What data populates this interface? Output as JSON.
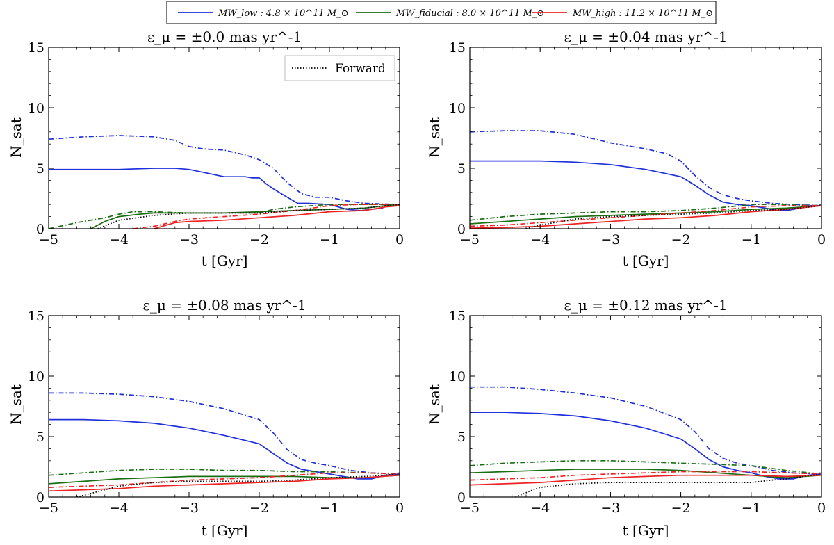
{
  "legend": {
    "entries": [
      {
        "label": "MW_low : 4.8 × 10^11 M_⊙",
        "color": "#1f2fdc"
      },
      {
        "label": "MW_fiducial : 8.0 × 10^11 M_⊙",
        "color": "#1a6e12"
      },
      {
        "label": "MW_high : 11.2 × 10^11 M_⊙",
        "color": "#ee2222"
      }
    ]
  },
  "colors": {
    "low": "#1f2fdc",
    "fiducial": "#1a6e12",
    "high": "#ee2222",
    "forward": "#000000"
  },
  "chart_data": [
    {
      "type": "line",
      "title": "ε_μ = ±0.0 mas yr^-1",
      "xlabel": "t [Gyr]",
      "ylabel": "N_sat",
      "xlim": [
        -5,
        0
      ],
      "ylim": [
        0,
        15
      ],
      "xticks": [
        "−5",
        "−4",
        "−3",
        "−2",
        "−1",
        "0"
      ],
      "yticks": [
        "0",
        "5",
        "10",
        "15"
      ],
      "legend_label": "Forward",
      "series": [
        {
          "color": "low",
          "style": "solid",
          "x": [
            -5,
            -4.5,
            -4,
            -3.5,
            -3.2,
            -3,
            -2.5,
            -2.2,
            -2.1,
            -2.0,
            -1.9,
            -1.8,
            -1.6,
            -1.45,
            -1.3,
            -1,
            -0.75,
            -0.55,
            -0.4,
            -0.25,
            -0.15,
            0
          ],
          "y": [
            4.9,
            4.9,
            4.9,
            5.0,
            5.0,
            4.9,
            4.3,
            4.3,
            4.2,
            4.2,
            3.7,
            3.3,
            2.6,
            2.1,
            2.1,
            2.0,
            1.6,
            1.5,
            1.6,
            1.7,
            2.0,
            2.0
          ]
        },
        {
          "color": "low",
          "style": "dashdot",
          "x": [
            -5,
            -4.5,
            -4,
            -3.5,
            -3.2,
            -3,
            -2.8,
            -2.5,
            -2.2,
            -2.0,
            -1.8,
            -1.6,
            -1.4,
            -1.2,
            -1,
            -0.75,
            -0.5,
            0
          ],
          "y": [
            7.4,
            7.6,
            7.7,
            7.6,
            7.3,
            6.8,
            6.6,
            6.5,
            6.1,
            5.7,
            5.0,
            3.8,
            2.9,
            2.6,
            2.6,
            2.3,
            2.1,
            2.0
          ]
        },
        {
          "color": "fiducial",
          "style": "solid",
          "x": [
            -4.4,
            -4.2,
            -4.0,
            -3.7,
            -3.5,
            -3.0,
            -2.5,
            -2.0,
            -1.5,
            -1.0,
            -0.5,
            -0.2,
            0
          ],
          "y": [
            0.0,
            0.6,
            1.0,
            1.2,
            1.3,
            1.3,
            1.3,
            1.4,
            1.5,
            1.6,
            1.7,
            1.9,
            2.0
          ]
        },
        {
          "color": "fiducial",
          "style": "dashdot",
          "x": [
            -5,
            -4.6,
            -4.2,
            -4.0,
            -3.8,
            -3.5,
            -3.0,
            -2.5,
            -2.0,
            -1.8,
            -1.5,
            -1.0,
            -0.5,
            0
          ],
          "y": [
            0.0,
            0.5,
            0.9,
            1.2,
            1.4,
            1.4,
            1.3,
            1.3,
            1.3,
            1.6,
            1.8,
            2.0,
            2.0,
            2.0
          ]
        },
        {
          "color": "high",
          "style": "solid",
          "x": [
            -3.5,
            -3.2,
            -3.0,
            -2.5,
            -2.0,
            -1.5,
            -1.0,
            -0.5,
            -0.2,
            0
          ],
          "y": [
            0.0,
            0.5,
            0.6,
            0.7,
            0.9,
            1.1,
            1.4,
            1.5,
            1.8,
            1.9
          ]
        },
        {
          "color": "high",
          "style": "dashdot",
          "x": [
            -3.8,
            -3.5,
            -3.2,
            -3.0,
            -2.5,
            -2.0,
            -1.5,
            -1.0,
            -0.6,
            -0.3,
            0
          ],
          "y": [
            0.0,
            0.2,
            0.6,
            0.8,
            1.0,
            1.2,
            1.5,
            1.9,
            2.0,
            2.0,
            2.0
          ]
        },
        {
          "color": "forward",
          "style": "dotted",
          "x": [
            -4.3,
            -4.0,
            -3.5,
            -3.0,
            -2.5,
            -2.0,
            -1.5,
            -1.0,
            -0.5,
            -0.2,
            0
          ],
          "y": [
            0.0,
            0.7,
            1.1,
            1.3,
            1.3,
            1.3,
            1.5,
            1.6,
            1.7,
            1.9,
            2.0
          ]
        }
      ]
    },
    {
      "type": "line",
      "title": "ε_μ = ±0.04 mas yr^-1",
      "xlabel": "t [Gyr]",
      "ylabel": "N_sat",
      "xlim": [
        -5,
        0
      ],
      "ylim": [
        0,
        15
      ],
      "xticks": [
        "−5",
        "−4",
        "−3",
        "−2",
        "−1",
        "0"
      ],
      "yticks": [
        "0",
        "5",
        "10",
        "15"
      ],
      "series": [
        {
          "color": "low",
          "style": "solid",
          "x": [
            -5,
            -4.5,
            -4,
            -3.5,
            -3.0,
            -2.5,
            -2.0,
            -1.8,
            -1.6,
            -1.4,
            -1.2,
            -1.0,
            -0.8,
            -0.6,
            -0.5,
            -0.3,
            -0.15,
            0
          ],
          "y": [
            5.6,
            5.6,
            5.6,
            5.5,
            5.3,
            4.9,
            4.3,
            3.6,
            2.8,
            2.2,
            2.0,
            1.9,
            1.7,
            1.5,
            1.5,
            1.7,
            1.9,
            1.9
          ]
        },
        {
          "color": "low",
          "style": "dashdot",
          "x": [
            -5,
            -4.5,
            -4,
            -3.5,
            -3.0,
            -2.5,
            -2.2,
            -2.0,
            -1.8,
            -1.6,
            -1.4,
            -1.2,
            -1.0,
            -0.7,
            -0.4,
            0
          ],
          "y": [
            8.0,
            8.1,
            8.1,
            7.8,
            7.1,
            6.6,
            6.2,
            5.6,
            4.4,
            3.4,
            2.8,
            2.5,
            2.3,
            2.1,
            2.0,
            1.9
          ]
        },
        {
          "color": "fiducial",
          "style": "solid",
          "x": [
            -5,
            -4.5,
            -4,
            -3.5,
            -3.0,
            -2.5,
            -2.0,
            -1.5,
            -1.0,
            -0.5,
            0
          ],
          "y": [
            0.4,
            0.6,
            0.8,
            1.0,
            1.1,
            1.2,
            1.3,
            1.4,
            1.6,
            1.7,
            1.9
          ]
        },
        {
          "color": "fiducial",
          "style": "dashdot",
          "x": [
            -5,
            -4.5,
            -4,
            -3.5,
            -3.0,
            -2.5,
            -2.0,
            -1.5,
            -1.0,
            -0.5,
            0
          ],
          "y": [
            0.7,
            1.0,
            1.2,
            1.3,
            1.4,
            1.4,
            1.5,
            1.7,
            2.0,
            2.0,
            1.9
          ]
        },
        {
          "color": "high",
          "style": "solid",
          "x": [
            -5,
            -4.5,
            -4,
            -3.5,
            -3.0,
            -2.5,
            -2.0,
            -1.5,
            -1.0,
            -0.5,
            0
          ],
          "y": [
            0.05,
            0.1,
            0.2,
            0.4,
            0.6,
            0.8,
            0.9,
            1.1,
            1.4,
            1.6,
            1.9
          ]
        },
        {
          "color": "high",
          "style": "dashdot",
          "x": [
            -5,
            -4.5,
            -4,
            -3.5,
            -3.0,
            -2.5,
            -2.0,
            -1.5,
            -1.0,
            -0.5,
            0
          ],
          "y": [
            0.2,
            0.3,
            0.5,
            0.7,
            0.9,
            1.1,
            1.3,
            1.5,
            1.8,
            1.9,
            1.9
          ]
        },
        {
          "color": "forward",
          "style": "dotted",
          "x": [
            -4.2,
            -4.0,
            -3.5,
            -3.0,
            -2.5,
            -2.0,
            -1.5,
            -1.0,
            -0.5,
            0
          ],
          "y": [
            0.0,
            0.3,
            0.8,
            1.0,
            1.1,
            1.2,
            1.3,
            1.5,
            1.6,
            1.9
          ]
        }
      ]
    },
    {
      "type": "line",
      "title": "ε_μ = ±0.08 mas yr^-1",
      "xlabel": "t [Gyr]",
      "ylabel": "N_sat",
      "xlim": [
        -5,
        0
      ],
      "ylim": [
        0,
        15
      ],
      "xticks": [
        "−5",
        "−4",
        "−3",
        "−2",
        "−1",
        "0"
      ],
      "yticks": [
        "0",
        "5",
        "10",
        "15"
      ],
      "series": [
        {
          "color": "low",
          "style": "solid",
          "x": [
            -5,
            -4.5,
            -4,
            -3.5,
            -3.0,
            -2.5,
            -2.0,
            -1.8,
            -1.6,
            -1.4,
            -1.2,
            -1.0,
            -0.8,
            -0.6,
            -0.4,
            -0.2,
            0
          ],
          "y": [
            6.4,
            6.4,
            6.3,
            6.1,
            5.7,
            5.1,
            4.4,
            3.6,
            2.8,
            2.3,
            2.1,
            1.9,
            1.7,
            1.5,
            1.5,
            1.8,
            1.9
          ]
        },
        {
          "color": "low",
          "style": "dashdot",
          "x": [
            -5,
            -4.5,
            -4,
            -3.5,
            -3.0,
            -2.5,
            -2.0,
            -1.8,
            -1.6,
            -1.4,
            -1.2,
            -1.0,
            -0.7,
            -0.4,
            0
          ],
          "y": [
            8.6,
            8.6,
            8.5,
            8.3,
            7.9,
            7.3,
            6.4,
            5.3,
            3.9,
            3.1,
            2.8,
            2.6,
            2.2,
            2.0,
            1.9
          ]
        },
        {
          "color": "fiducial",
          "style": "solid",
          "x": [
            -5,
            -4.5,
            -4,
            -3.5,
            -3.0,
            -2.5,
            -2.0,
            -1.5,
            -1.0,
            -0.5,
            0
          ],
          "y": [
            1.1,
            1.3,
            1.5,
            1.6,
            1.7,
            1.7,
            1.7,
            1.7,
            1.6,
            1.6,
            1.8
          ]
        },
        {
          "color": "fiducial",
          "style": "dashdot",
          "x": [
            -5,
            -4.5,
            -4,
            -3.5,
            -3.0,
            -2.5,
            -2.0,
            -1.5,
            -1.0,
            -0.5,
            0
          ],
          "y": [
            1.8,
            2.0,
            2.2,
            2.3,
            2.3,
            2.2,
            2.2,
            2.1,
            2.1,
            2.0,
            1.9
          ]
        },
        {
          "color": "high",
          "style": "solid",
          "x": [
            -5,
            -4.5,
            -4,
            -3.5,
            -3.0,
            -2.5,
            -2.0,
            -1.5,
            -1.0,
            -0.5,
            0
          ],
          "y": [
            0.5,
            0.6,
            0.7,
            0.9,
            1.0,
            1.1,
            1.2,
            1.3,
            1.5,
            1.6,
            1.8
          ]
        },
        {
          "color": "high",
          "style": "dashdot",
          "x": [
            -5,
            -4.5,
            -4,
            -3.5,
            -3.0,
            -2.5,
            -2.0,
            -1.5,
            -1.0,
            -0.5,
            0
          ],
          "y": [
            0.8,
            0.9,
            1.0,
            1.2,
            1.4,
            1.5,
            1.6,
            1.8,
            2.0,
            2.0,
            1.9
          ]
        },
        {
          "color": "forward",
          "style": "dotted",
          "x": [
            -4.6,
            -4.2,
            -4.0,
            -3.5,
            -3.0,
            -2.5,
            -2.0,
            -1.5,
            -1.0,
            -0.5,
            0
          ],
          "y": [
            0.0,
            0.6,
            0.9,
            1.2,
            1.3,
            1.3,
            1.3,
            1.4,
            1.6,
            1.7,
            1.9
          ]
        }
      ]
    },
    {
      "type": "line",
      "title": "ε_μ = ±0.12 mas yr^-1",
      "xlabel": "t [Gyr]",
      "ylabel": "N_sat",
      "xlim": [
        -5,
        0
      ],
      "ylim": [
        0,
        15
      ],
      "xticks": [
        "−5",
        "−4",
        "−3",
        "−2",
        "−1",
        "0"
      ],
      "yticks": [
        "0",
        "5",
        "10",
        "15"
      ],
      "series": [
        {
          "color": "low",
          "style": "solid",
          "x": [
            -5,
            -4.5,
            -4,
            -3.5,
            -3.0,
            -2.5,
            -2.0,
            -1.8,
            -1.6,
            -1.4,
            -1.2,
            -1.0,
            -0.8,
            -0.6,
            -0.4,
            -0.2,
            0
          ],
          "y": [
            7.0,
            7.0,
            6.9,
            6.7,
            6.3,
            5.7,
            4.8,
            4.0,
            3.1,
            2.5,
            2.2,
            2.0,
            1.7,
            1.5,
            1.5,
            1.8,
            1.9
          ]
        },
        {
          "color": "low",
          "style": "dashdot",
          "x": [
            -5,
            -4.5,
            -4,
            -3.5,
            -3.0,
            -2.5,
            -2.0,
            -1.8,
            -1.6,
            -1.4,
            -1.2,
            -1.0,
            -0.7,
            -0.4,
            0
          ],
          "y": [
            9.1,
            9.1,
            8.9,
            8.6,
            8.2,
            7.5,
            6.4,
            5.4,
            4.0,
            3.2,
            2.8,
            2.6,
            2.2,
            2.0,
            1.9
          ]
        },
        {
          "color": "fiducial",
          "style": "solid",
          "x": [
            -5,
            -4.5,
            -4,
            -3.5,
            -3.0,
            -2.5,
            -2.0,
            -1.5,
            -1.0,
            -0.5,
            0
          ],
          "y": [
            2.0,
            2.1,
            2.2,
            2.3,
            2.3,
            2.3,
            2.2,
            2.0,
            1.8,
            1.6,
            1.8
          ]
        },
        {
          "color": "fiducial",
          "style": "dashdot",
          "x": [
            -5,
            -4.5,
            -4,
            -3.5,
            -3.0,
            -2.5,
            -2.0,
            -1.5,
            -1.0,
            -0.5,
            0
          ],
          "y": [
            2.6,
            2.8,
            2.9,
            3.0,
            3.0,
            2.9,
            2.8,
            2.7,
            2.6,
            2.2,
            1.9
          ]
        },
        {
          "color": "high",
          "style": "solid",
          "x": [
            -5,
            -4.5,
            -4,
            -3.5,
            -3.0,
            -2.5,
            -2.0,
            -1.5,
            -1.0,
            -0.5,
            0
          ],
          "y": [
            1.0,
            1.1,
            1.2,
            1.4,
            1.6,
            1.7,
            1.8,
            1.8,
            1.8,
            1.7,
            1.8
          ]
        },
        {
          "color": "high",
          "style": "dashdot",
          "x": [
            -5,
            -4.5,
            -4,
            -3.5,
            -3.0,
            -2.5,
            -2.0,
            -1.5,
            -1.0,
            -0.5,
            0
          ],
          "y": [
            1.4,
            1.5,
            1.6,
            1.8,
            1.9,
            2.0,
            2.1,
            2.1,
            2.1,
            2.0,
            1.9
          ]
        },
        {
          "color": "forward",
          "style": "dotted",
          "x": [
            -4.35,
            -4.1,
            -4.0,
            -3.5,
            -3.0,
            -2.5,
            -2.0,
            -1.5,
            -1.0,
            -0.7,
            -0.5,
            0
          ],
          "y": [
            0.0,
            0.6,
            0.8,
            1.1,
            1.2,
            1.2,
            1.2,
            1.2,
            1.2,
            1.4,
            1.5,
            1.9
          ]
        }
      ]
    }
  ]
}
